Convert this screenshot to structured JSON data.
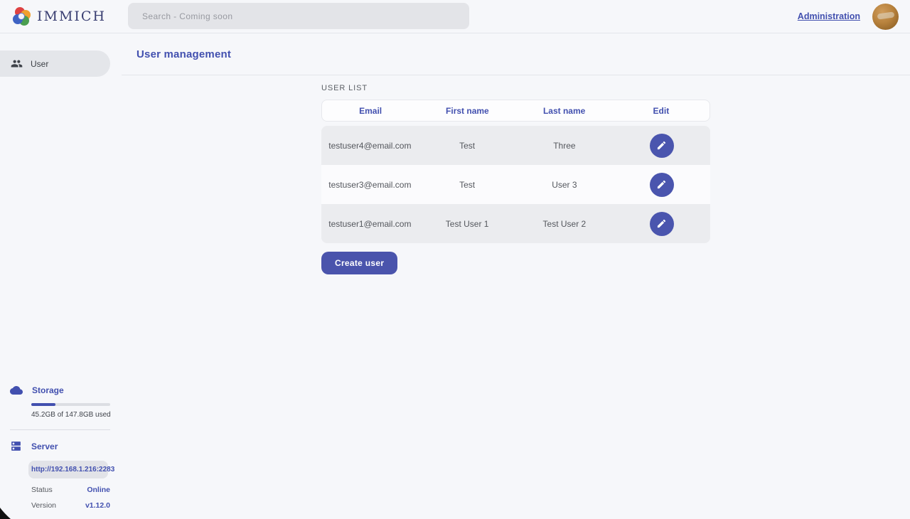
{
  "topbar": {
    "brand": "IMMICH",
    "search_placeholder": "Search - Coming soon",
    "admin_link": "Administration"
  },
  "sidebar": {
    "items": [
      {
        "label": "User",
        "selected": true
      }
    ],
    "storage": {
      "title": "Storage",
      "usage_text": "45.2GB of 147.8GB used",
      "percent_used": 30.6
    },
    "server": {
      "title": "Server",
      "url": "http://192.168.1.216:2283",
      "status_label": "Status",
      "status_value": "Online",
      "version_label": "Version",
      "version_value": "v1.12.0"
    }
  },
  "main": {
    "title": "User management",
    "section_label": "USER LIST",
    "table": {
      "columns": [
        "Email",
        "First name",
        "Last name",
        "Edit"
      ],
      "rows": [
        {
          "email": "testuser4@email.com",
          "first_name": "Test",
          "last_name": "Three"
        },
        {
          "email": "testuser3@email.com",
          "first_name": "Test",
          "last_name": "User 3"
        },
        {
          "email": "testuser1@email.com",
          "first_name": "Test User 1",
          "last_name": "Test User 2"
        }
      ]
    },
    "create_button": "Create user"
  },
  "icons": {
    "logo": "immich-flower-logo",
    "sidebar_user": "users-group-icon",
    "storage": "cloud-icon",
    "server": "server-dns-icon",
    "edit": "pencil-icon"
  },
  "colors": {
    "primary": "#4250af",
    "button": "#4a54ac",
    "edit_button": "#4a55ae",
    "page_background": "#f6f7fa",
    "row_alt": "#ebecef",
    "status_online": "#4250af"
  }
}
